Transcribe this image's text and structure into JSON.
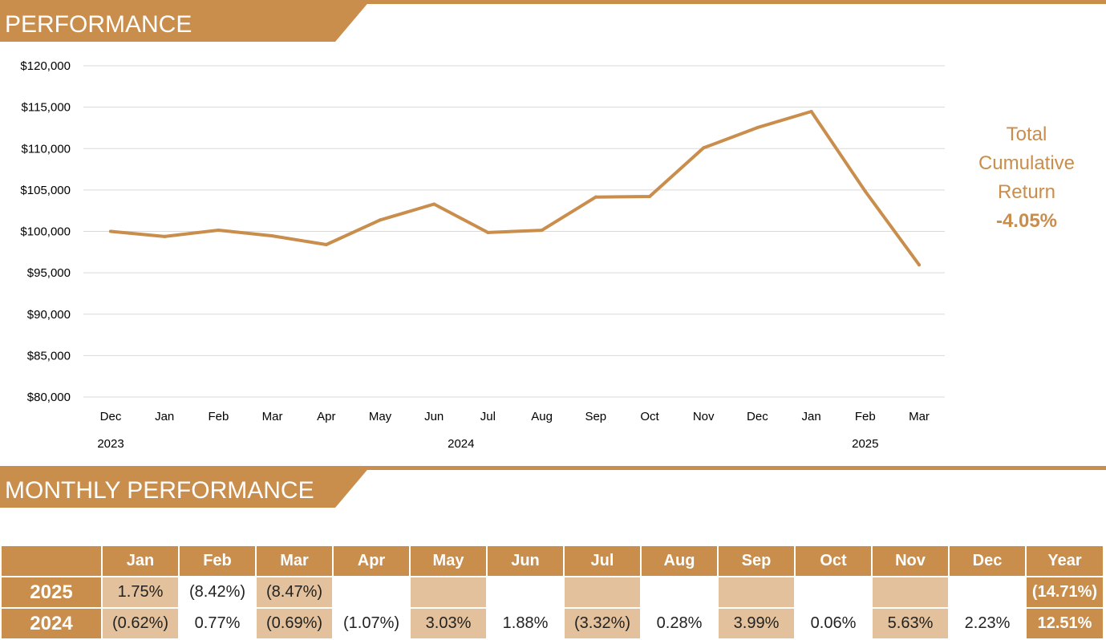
{
  "colors": {
    "accent": "#C98D4C",
    "cell_shade": "#E2C19C",
    "grid": "#D9D9D9",
    "text": "#222222"
  },
  "headers": {
    "performance": "PERFORMANCE",
    "monthly": "MONTHLY PERFORMANCE"
  },
  "summary": {
    "label_line1": "Total",
    "label_line2": "Cumulative",
    "label_line3": "Return",
    "value": "-4.05%"
  },
  "chart_data": {
    "type": "line",
    "title": "",
    "xlabel": "",
    "ylabel": "",
    "ylim": [
      80000,
      120000
    ],
    "yticks": [
      80000,
      85000,
      90000,
      95000,
      100000,
      105000,
      110000,
      115000,
      120000
    ],
    "ytick_labels": [
      "$80,000",
      "$85,000",
      "$90,000",
      "$95,000",
      "$100,000",
      "$105,000",
      "$110,000",
      "$115,000",
      "$120,000"
    ],
    "categories": [
      "Dec",
      "Jan",
      "Feb",
      "Mar",
      "Apr",
      "May",
      "Jun",
      "Jul",
      "Aug",
      "Sep",
      "Oct",
      "Nov",
      "Dec",
      "Jan",
      "Feb",
      "Mar"
    ],
    "year_labels": [
      {
        "label": "2023",
        "index": 0
      },
      {
        "label": "2024",
        "index": 6.5
      },
      {
        "label": "2025",
        "index": 14
      }
    ],
    "grid": true,
    "legend": "none",
    "series": [
      {
        "values": [
          100000,
          99380,
          100150,
          99460,
          98400,
          101380,
          103290,
          99860,
          100140,
          104150,
          104210,
          110080,
          112530,
          114480,
          104840,
          95960
        ]
      }
    ]
  },
  "table": {
    "columns": [
      "",
      "Jan",
      "Feb",
      "Mar",
      "Apr",
      "May",
      "Jun",
      "Jul",
      "Aug",
      "Sep",
      "Oct",
      "Nov",
      "Dec",
      "Year"
    ],
    "rows": [
      {
        "year": "2025",
        "values": [
          "1.75%",
          "(8.42%)",
          "(8.47%)",
          "",
          "",
          "",
          "",
          "",
          "",
          "",
          "",
          ""
        ],
        "total": "(14.71%)"
      },
      {
        "year": "2024",
        "values": [
          "(0.62%)",
          "0.77%",
          "(0.69%)",
          "(1.07%)",
          "3.03%",
          "1.88%",
          "(3.32%)",
          "0.28%",
          "3.99%",
          "0.06%",
          "5.63%",
          "2.23%"
        ],
        "total": "12.51%"
      }
    ]
  }
}
